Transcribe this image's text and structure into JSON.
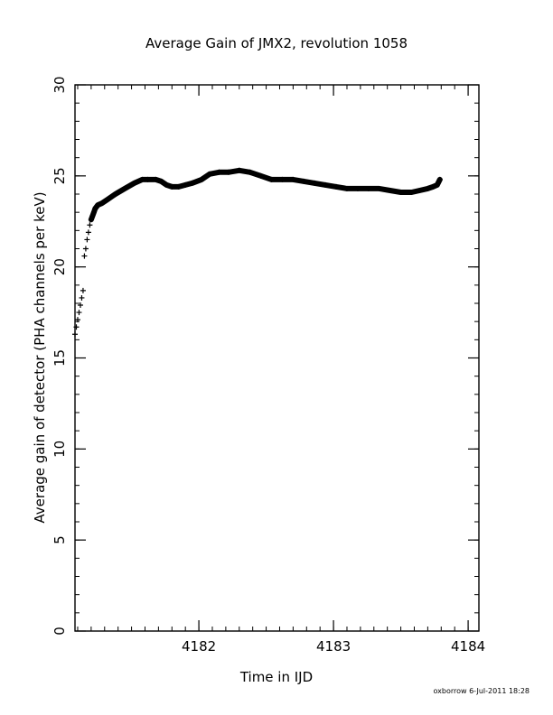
{
  "chart_data": {
    "type": "scatter",
    "title": "Average Gain of JMX2, revolution 1058",
    "xlabel": "Time in IJD",
    "ylabel": "Average gain of detector (PHA channels per keV)",
    "xlim": [
      4181.08,
      4184.08
    ],
    "ylim": [
      0,
      30
    ],
    "xticks": [
      4182,
      4183,
      4184
    ],
    "yticks": [
      0,
      5,
      10,
      15,
      20,
      25,
      30
    ],
    "x_minor_step": 0.1,
    "y_minor_step": 1,
    "grid": false,
    "marker": "plus",
    "series": [
      {
        "name": "",
        "x": [
          4181.08,
          4181.09,
          4181.1,
          4181.11,
          4181.12,
          4181.13,
          4181.14,
          4181.15,
          4181.16,
          4181.17,
          4181.18,
          4181.19,
          4181.2,
          4181.21,
          4181.22,
          4181.23,
          4181.25,
          4181.28,
          4181.32,
          4181.38,
          4181.45,
          4181.52,
          4181.58,
          4181.62,
          4181.68,
          4181.72,
          4181.76,
          4181.8,
          4181.85,
          4181.9,
          4181.95,
          4182.02,
          4182.08,
          4182.15,
          4182.22,
          4182.3,
          4182.38,
          4182.46,
          4182.54,
          4182.62,
          4182.7,
          4182.78,
          4182.86,
          4182.94,
          4183.02,
          4183.1,
          4183.18,
          4183.26,
          4183.34,
          4183.42,
          4183.5,
          4183.58,
          4183.64,
          4183.7,
          4183.74,
          4183.77,
          4183.79
        ],
        "y": [
          16.3,
          16.7,
          17.1,
          17.5,
          17.9,
          18.3,
          18.7,
          20.6,
          21.0,
          21.5,
          21.9,
          22.3,
          22.6,
          22.8,
          23.0,
          23.2,
          23.4,
          23.5,
          23.7,
          24.0,
          24.3,
          24.6,
          24.8,
          24.8,
          24.8,
          24.7,
          24.5,
          24.4,
          24.4,
          24.5,
          24.6,
          24.8,
          25.1,
          25.2,
          25.2,
          25.3,
          25.2,
          25.0,
          24.8,
          24.8,
          24.8,
          24.7,
          24.6,
          24.5,
          24.4,
          24.3,
          24.3,
          24.3,
          24.3,
          24.2,
          24.1,
          24.1,
          24.2,
          24.3,
          24.4,
          24.5,
          24.8
        ]
      }
    ],
    "footer": "oxborrow  6-Jul-2011 18:28"
  }
}
